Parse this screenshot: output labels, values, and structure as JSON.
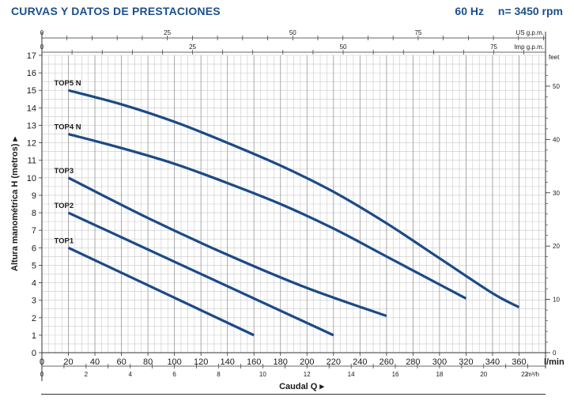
{
  "header": {
    "title": "CURVAS Y DATOS DE PRESTACIONES",
    "frequency": "60 Hz",
    "speed": "n= 3450 rpm"
  },
  "chart_data": {
    "type": "line",
    "title": "CURVAS Y DATOS DE PRESTACIONES",
    "xlabel": "Caudal Q",
    "xlabel_arrow": "▸",
    "ylabel": "Altura manométrica H (metros)",
    "ylabel_arrow": "▸",
    "grid": true,
    "xlim": [
      0,
      380
    ],
    "ylim": [
      0,
      17
    ],
    "x_unit": "l/min",
    "x_ticks": [
      0,
      20,
      40,
      60,
      80,
      100,
      120,
      140,
      160,
      180,
      200,
      220,
      240,
      260,
      280,
      300,
      320,
      340,
      360
    ],
    "y_ticks": [
      0,
      1,
      2,
      3,
      4,
      5,
      6,
      7,
      8,
      9,
      10,
      11,
      12,
      13,
      14,
      15,
      16,
      17
    ],
    "secondary_axes": {
      "us_gpm": {
        "unit": "US g.p.m.",
        "ticks": [
          0,
          25,
          50,
          75
        ]
      },
      "imp_gpm": {
        "unit": "Imp g.p.m.",
        "ticks": [
          0,
          25,
          50,
          75
        ]
      },
      "m3h": {
        "unit": "m³/h",
        "ticks": [
          0,
          2,
          4,
          6,
          8,
          10,
          12,
          14,
          16,
          18,
          20,
          22
        ]
      },
      "feet": {
        "unit": "feet",
        "ticks": [
          0,
          10,
          20,
          30,
          40,
          50
        ]
      }
    },
    "series": [
      {
        "name": "TOP1",
        "x": [
          20,
          160
        ],
        "y": [
          6,
          1
        ]
      },
      {
        "name": "TOP2",
        "x": [
          20,
          220
        ],
        "y": [
          8,
          1
        ]
      },
      {
        "name": "TOP3",
        "x": [
          20,
          80,
          140,
          200,
          260
        ],
        "y": [
          10,
          7.7,
          5.6,
          3.7,
          2.1
        ]
      },
      {
        "name": "TOP4 N",
        "x": [
          20,
          60,
          100,
          140,
          180,
          220,
          260,
          300,
          320
        ],
        "y": [
          12.5,
          11.7,
          10.8,
          9.7,
          8.5,
          7.1,
          5.5,
          3.9,
          3.1
        ]
      },
      {
        "name": "TOP5 N",
        "x": [
          20,
          60,
          100,
          140,
          180,
          220,
          260,
          300,
          340,
          360
        ],
        "y": [
          15,
          14.2,
          13.2,
          12.0,
          10.7,
          9.2,
          7.4,
          5.4,
          3.4,
          2.6
        ]
      }
    ],
    "colors": {
      "curve": "#1c4a85",
      "grid": "#c8c8c8",
      "header": "#1c4f8c"
    }
  }
}
